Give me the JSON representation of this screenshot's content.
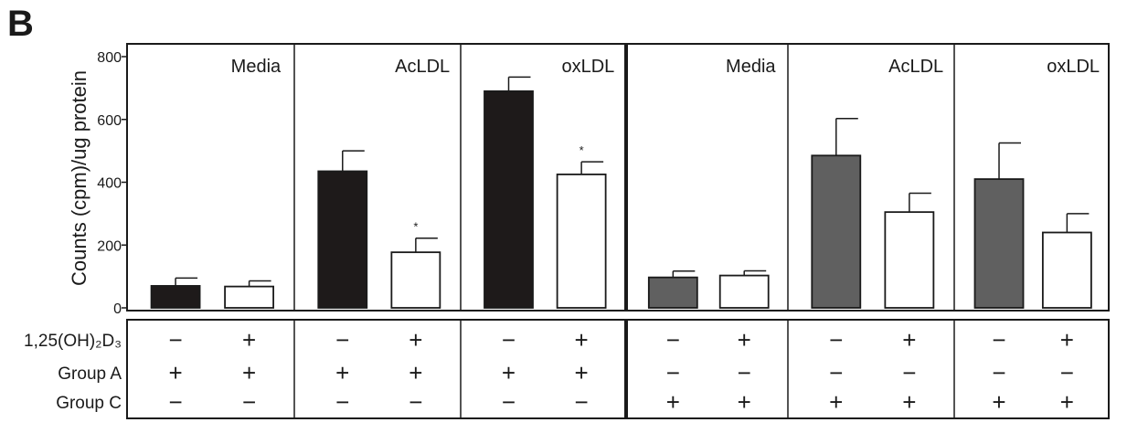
{
  "panel_letter": "B",
  "chart_data": {
    "type": "bar",
    "ylabel": "Counts (cpm)/ug protein",
    "ylim": [
      0,
      800
    ],
    "yticks": [
      0,
      200,
      400,
      600,
      800
    ],
    "groups": [
      {
        "label": "Media",
        "bars": [
          {
            "value": 70,
            "error": 25,
            "fill": "black",
            "star": ""
          },
          {
            "value": 68,
            "error": 18,
            "fill": "white",
            "star": ""
          }
        ]
      },
      {
        "label": "AcLDL",
        "bars": [
          {
            "value": 435,
            "error": 65,
            "fill": "black",
            "star": ""
          },
          {
            "value": 177,
            "error": 45,
            "fill": "white",
            "star": "*"
          }
        ]
      },
      {
        "label": "oxLDL",
        "bars": [
          {
            "value": 690,
            "error": 45,
            "fill": "black",
            "star": ""
          },
          {
            "value": 425,
            "error": 40,
            "fill": "white",
            "star": "*"
          }
        ]
      },
      {
        "label": "Media",
        "bars": [
          {
            "value": 97,
            "error": 20,
            "fill": "gray",
            "star": ""
          },
          {
            "value": 103,
            "error": 15,
            "fill": "white",
            "star": ""
          }
        ]
      },
      {
        "label": "AcLDL",
        "bars": [
          {
            "value": 485,
            "error": 118,
            "fill": "gray",
            "star": ""
          },
          {
            "value": 305,
            "error": 60,
            "fill": "white",
            "star": ""
          }
        ]
      },
      {
        "label": "oxLDL",
        "bars": [
          {
            "value": 410,
            "error": 115,
            "fill": "gray",
            "star": ""
          },
          {
            "value": 240,
            "error": 60,
            "fill": "white",
            "star": ""
          }
        ]
      }
    ],
    "colors": {
      "black": "#1e1a1a",
      "gray": "#606060",
      "white": "#ffffff"
    },
    "table": {
      "rows": [
        {
          "label": "1,25(OH)₂D₃",
          "signs": [
            "−",
            "+",
            "−",
            "+",
            "−",
            "+",
            "−",
            "+",
            "−",
            "+",
            "−",
            "+"
          ]
        },
        {
          "label": "Group A",
          "signs": [
            "+",
            "+",
            "+",
            "+",
            "+",
            "+",
            "−",
            "−",
            "−",
            "−",
            "−",
            "−"
          ]
        },
        {
          "label": "Group C",
          "signs": [
            "−",
            "−",
            "−",
            "−",
            "−",
            "−",
            "+",
            "+",
            "+",
            "+",
            "+",
            "+"
          ]
        }
      ]
    }
  }
}
